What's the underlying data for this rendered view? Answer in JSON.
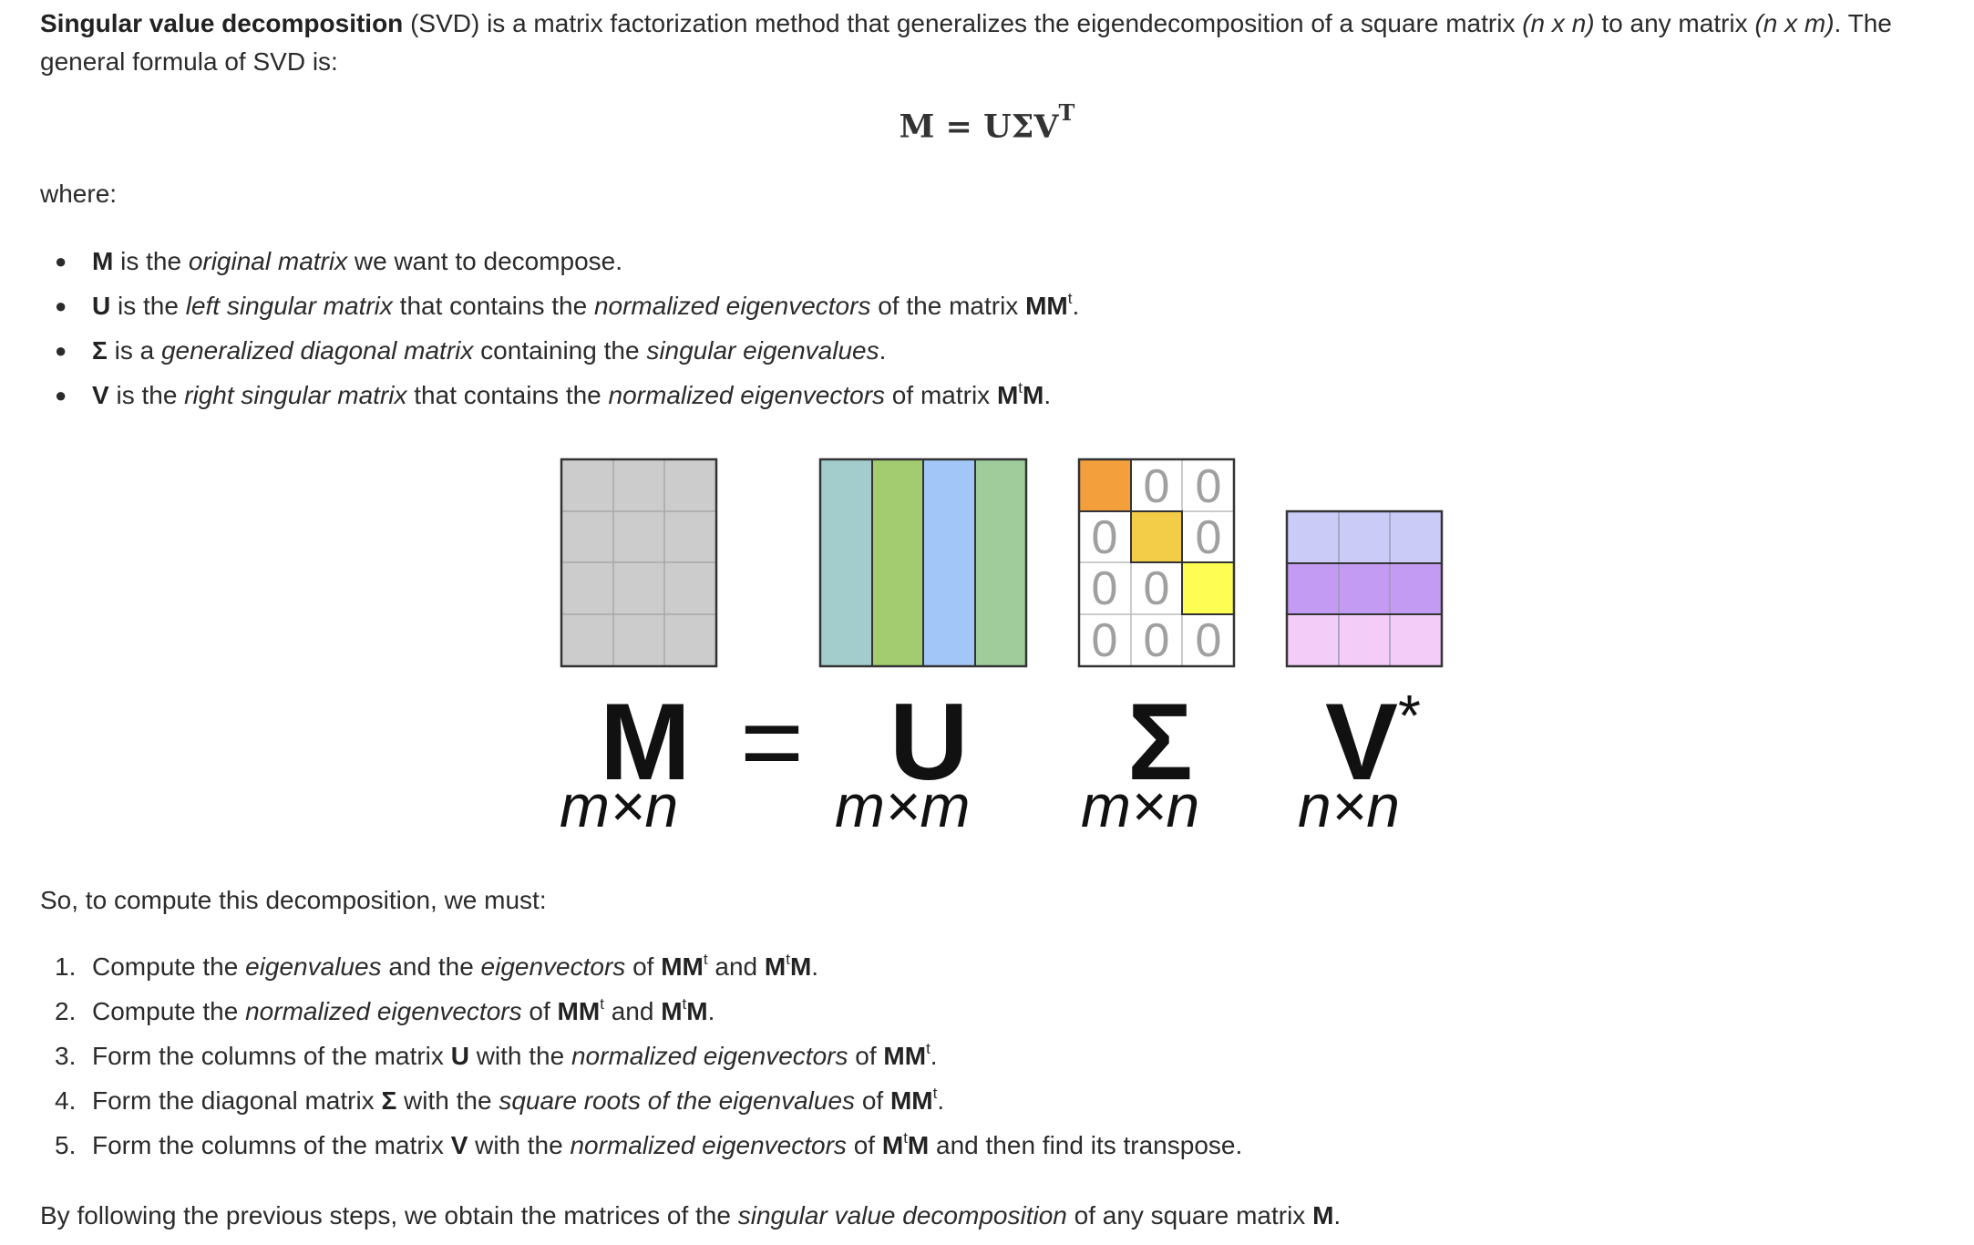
{
  "intro": {
    "term": "Singular value decomposition",
    "abbr": " (SVD) is a matrix factorization method that generalizes the eigendecomposition of a square matrix ",
    "sq_dims": "(n x n)",
    "mid": " to any matrix ",
    "any_dims": "(n x m)",
    "end": ". The general formula of SVD is:"
  },
  "formula": {
    "base": "M = UΣV",
    "sup": "T"
  },
  "where_label": "where:",
  "bullets": [
    {
      "b1": "M",
      "t1": " is the ",
      "i1": "original matrix",
      "t2": " we want to decompose."
    },
    {
      "b1": "U",
      "t1": " is the ",
      "i1": "left singular matrix",
      "t2": " that contains the ",
      "i2": "normalized eigenvectors",
      "t3": " of the matrix ",
      "b2": "MM",
      "s2": "t",
      "t4": "."
    },
    {
      "b1": "Σ",
      "t1": " is a ",
      "i1": "generalized diagonal matrix",
      "t2": " containing the ",
      "i2": "singular eigenvalues",
      "t3": "."
    },
    {
      "b1": "V",
      "t1": " is the ",
      "i1": "right singular matrix",
      "t2": " that contains the ",
      "i2": "normalized eigenvectors",
      "t3": " of matrix ",
      "b2a": "M",
      "s2": "t",
      "b2b": "M",
      "t4": "."
    }
  ],
  "figure": {
    "m": {
      "letter": "M",
      "dims": "m×n",
      "color": "#cccccc"
    },
    "eq": "=",
    "u": {
      "letter": "U",
      "dims": "m×m",
      "colors": [
        "#a3cccc",
        "#a3cc70",
        "#a3c6f8",
        "#a0cc9c"
      ]
    },
    "sigma": {
      "letter": "Σ",
      "dims": "m×n",
      "diag_colors": [
        "#f3a03c",
        "#f3cc48",
        "#fdfd53"
      ],
      "zero": "0"
    },
    "v": {
      "letter": "V",
      "star": "*",
      "dims": "n×n",
      "colors": [
        "#cbcbf8",
        "#c49bf3",
        "#f3cdf8"
      ]
    }
  },
  "so_label": "So, to compute this decomposition, we must:",
  "steps": [
    {
      "n": "1.",
      "t1": "Compute the ",
      "i1": "eigenvalues",
      "t2": " and the ",
      "i2": "eigenvectors",
      "t3": " of ",
      "b1": "MM",
      "s1": "t",
      "t4": " and ",
      "b2a": "M",
      "s2": "t",
      "b2b": "M",
      "t5": "."
    },
    {
      "n": "2.",
      "t1": "Compute the ",
      "i1": "normalized eigenvectors",
      "t2": " of ",
      "b1": "MM",
      "s1": "t",
      "t3": " and ",
      "b2a": "M",
      "s2": "t",
      "b2b": "M",
      "t4": "."
    },
    {
      "n": "3.",
      "t1": "Form the columns of the matrix ",
      "b1": "U",
      "t2": " with the ",
      "i1": "normalized eigenvectors",
      "t3": " of ",
      "b2": "MM",
      "s2": "t",
      "t4": "."
    },
    {
      "n": "4.",
      "t1": "Form the diagonal matrix ",
      "b1": "Σ",
      "t2": " with the ",
      "i1": "square roots of the eigenvalues",
      "t3": " of ",
      "b2": "MM",
      "s2": "t",
      "t4": "."
    },
    {
      "n": "5.",
      "t1": "Form the columns of the matrix ",
      "b1": "V",
      "t2": " with the ",
      "i1": "normalized eigenvectors",
      "t3": " of ",
      "b2a": "M",
      "s2": "t",
      "b2b": "M",
      "t4": " and then find its transpose."
    }
  ],
  "conclusion": {
    "t1": "By following the previous steps, we obtain the matrices of the ",
    "i1": "singular value decomposition",
    "t2": " of any square matrix ",
    "b1": "M",
    "t3": "."
  }
}
